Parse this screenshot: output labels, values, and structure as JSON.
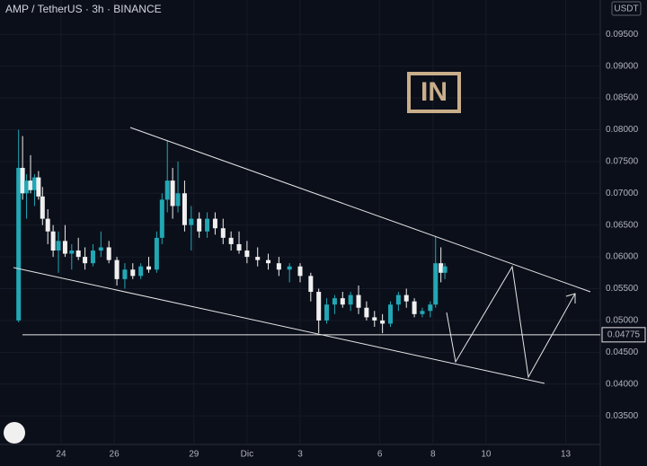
{
  "chart_data": {
    "type": "candlestick",
    "title": "AMP / TetherUS · 3h · BINANCE",
    "currency": "USDT",
    "watermark": "IN",
    "up_color": "#22a7b5",
    "down_color": "#f0f0f0",
    "grid": true,
    "xlim": [
      21.7,
      44.3
    ],
    "ylim": [
      0.0305,
      0.1004
    ],
    "xticks": [
      {
        "value": 24,
        "label": "24"
      },
      {
        "value": 26,
        "label": "26"
      },
      {
        "value": 29,
        "label": "29"
      },
      {
        "value": 31,
        "label": "Dic"
      },
      {
        "value": 33,
        "label": "3"
      },
      {
        "value": 36,
        "label": "6"
      },
      {
        "value": 38,
        "label": "8"
      },
      {
        "value": 40,
        "label": "10"
      },
      {
        "value": 43,
        "label": "13"
      }
    ],
    "yticks": [
      {
        "value": 0.035,
        "label": "0.03500"
      },
      {
        "value": 0.04,
        "label": "0.04000"
      },
      {
        "value": 0.045,
        "label": "0.04500"
      },
      {
        "value": 0.05,
        "label": "0.05000"
      },
      {
        "value": 0.055,
        "label": "0.05500"
      },
      {
        "value": 0.06,
        "label": "0.06000"
      },
      {
        "value": 0.065,
        "label": "0.06500"
      },
      {
        "value": 0.07,
        "label": "0.07000"
      },
      {
        "value": 0.075,
        "label": "0.07500"
      },
      {
        "value": 0.08,
        "label": "0.08000"
      },
      {
        "value": 0.085,
        "label": "0.08500"
      },
      {
        "value": 0.09,
        "label": "0.09000"
      },
      {
        "value": 0.095,
        "label": "0.09500"
      }
    ],
    "price_line": {
      "value": 0.04775,
      "label": "0.04775"
    },
    "x": [
      22.4,
      22.55,
      22.7,
      22.85,
      23.0,
      23.15,
      23.3,
      23.5,
      23.7,
      23.9,
      24.15,
      24.4,
      24.65,
      24.9,
      25.2,
      25.5,
      25.8,
      26.1,
      26.4,
      26.7,
      27.0,
      27.3,
      27.6,
      27.8,
      28.0,
      28.2,
      28.4,
      28.65,
      28.9,
      29.2,
      29.5,
      29.8,
      30.1,
      30.4,
      30.7,
      31.0,
      31.4,
      31.8,
      32.2,
      32.6,
      33.0,
      33.4,
      33.7,
      34.0,
      34.3,
      34.6,
      34.9,
      35.2,
      35.5,
      35.8,
      36.1,
      36.4,
      36.7,
      37.0,
      37.3,
      37.6,
      37.9,
      38.1,
      38.3,
      38.45
    ],
    "open": [
      0.05,
      0.074,
      0.07,
      0.072,
      0.0705,
      0.0725,
      0.0695,
      0.066,
      0.064,
      0.061,
      0.0625,
      0.0605,
      0.061,
      0.06,
      0.059,
      0.061,
      0.0615,
      0.0595,
      0.0565,
      0.058,
      0.057,
      0.0585,
      0.058,
      0.063,
      0.069,
      0.072,
      0.068,
      0.07,
      0.065,
      0.066,
      0.064,
      0.066,
      0.0645,
      0.063,
      0.062,
      0.061,
      0.06,
      0.0595,
      0.059,
      0.058,
      0.0585,
      0.057,
      0.0545,
      0.05,
      0.0525,
      0.0535,
      0.0525,
      0.054,
      0.052,
      0.0505,
      0.05,
      0.0495,
      0.0525,
      0.054,
      0.053,
      0.051,
      0.0515,
      0.0525,
      0.059,
      0.0575
    ],
    "high": [
      0.08,
      0.079,
      0.073,
      0.076,
      0.073,
      0.0735,
      0.071,
      0.0675,
      0.065,
      0.064,
      0.065,
      0.062,
      0.063,
      0.0615,
      0.062,
      0.064,
      0.0625,
      0.06,
      0.059,
      0.059,
      0.059,
      0.06,
      0.064,
      0.07,
      0.0783,
      0.074,
      0.075,
      0.072,
      0.068,
      0.067,
      0.067,
      0.067,
      0.066,
      0.064,
      0.064,
      0.0625,
      0.0615,
      0.0605,
      0.06,
      0.059,
      0.059,
      0.0575,
      0.055,
      0.0535,
      0.054,
      0.0545,
      0.0545,
      0.0555,
      0.053,
      0.0515,
      0.051,
      0.053,
      0.0545,
      0.055,
      0.0535,
      0.052,
      0.053,
      0.0633,
      0.0615,
      0.059
    ],
    "low": [
      0.0497,
      0.069,
      0.066,
      0.07,
      0.068,
      0.069,
      0.065,
      0.062,
      0.06,
      0.0575,
      0.06,
      0.058,
      0.0595,
      0.058,
      0.0585,
      0.06,
      0.059,
      0.0555,
      0.055,
      0.0565,
      0.0565,
      0.0575,
      0.0575,
      0.062,
      0.067,
      0.066,
      0.067,
      0.064,
      0.061,
      0.063,
      0.063,
      0.0635,
      0.062,
      0.061,
      0.0605,
      0.059,
      0.0585,
      0.058,
      0.057,
      0.056,
      0.056,
      0.053,
      0.048,
      0.0495,
      0.051,
      0.052,
      0.0515,
      0.051,
      0.05,
      0.049,
      0.048,
      0.049,
      0.0515,
      0.052,
      0.0505,
      0.0505,
      0.0505,
      0.052,
      0.056,
      0.0565
    ],
    "close": [
      0.074,
      0.07,
      0.072,
      0.0705,
      0.0725,
      0.0695,
      0.066,
      0.064,
      0.061,
      0.0625,
      0.0605,
      0.061,
      0.06,
      0.059,
      0.061,
      0.0615,
      0.0595,
      0.0565,
      0.058,
      0.057,
      0.0585,
      0.058,
      0.063,
      0.069,
      0.072,
      0.068,
      0.07,
      0.065,
      0.066,
      0.064,
      0.066,
      0.0645,
      0.063,
      0.062,
      0.061,
      0.06,
      0.0595,
      0.059,
      0.058,
      0.0585,
      0.057,
      0.0545,
      0.05,
      0.0525,
      0.0535,
      0.0525,
      0.054,
      0.052,
      0.0505,
      0.05,
      0.0495,
      0.0525,
      0.054,
      0.053,
      0.051,
      0.0515,
      0.0525,
      0.059,
      0.0575,
      0.0585
    ]
  }
}
